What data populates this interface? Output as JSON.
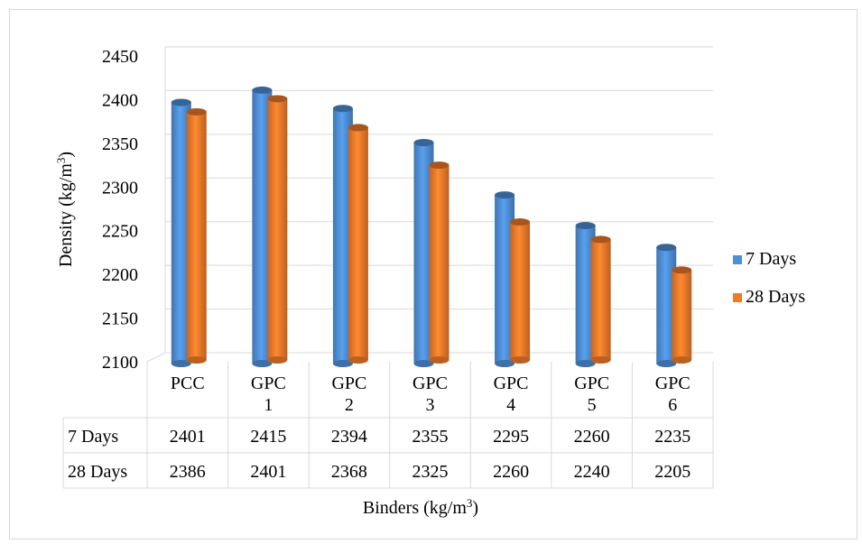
{
  "chart_data": {
    "type": "bar",
    "categories": [
      [
        "PCC"
      ],
      [
        "GPC",
        "1"
      ],
      [
        "GPC",
        "2"
      ],
      [
        "GPC",
        "3"
      ],
      [
        "GPC",
        "4"
      ],
      [
        "GPC",
        "5"
      ],
      [
        "GPC",
        "6"
      ]
    ],
    "series": [
      {
        "name": "7 Days",
        "values": [
          2401,
          2415,
          2394,
          2355,
          2295,
          2260,
          2235
        ],
        "color": "#4f8fd6"
      },
      {
        "name": "28 Days",
        "values": [
          2386,
          2401,
          2368,
          2325,
          2260,
          2240,
          2205
        ],
        "color": "#f07b2a"
      }
    ],
    "ylabel": "Density (kg/m",
    "ylabel_sup": "3",
    "ylabel_close": ")",
    "xlabel": "Binders (kg/m",
    "xlabel_sup": "3",
    "xlabel_close": ")",
    "ylim": [
      2100,
      2450
    ],
    "yticks": [
      2100,
      2150,
      2200,
      2250,
      2300,
      2350,
      2400,
      2450
    ],
    "grid": true,
    "legend": "right",
    "data_table": true
  }
}
